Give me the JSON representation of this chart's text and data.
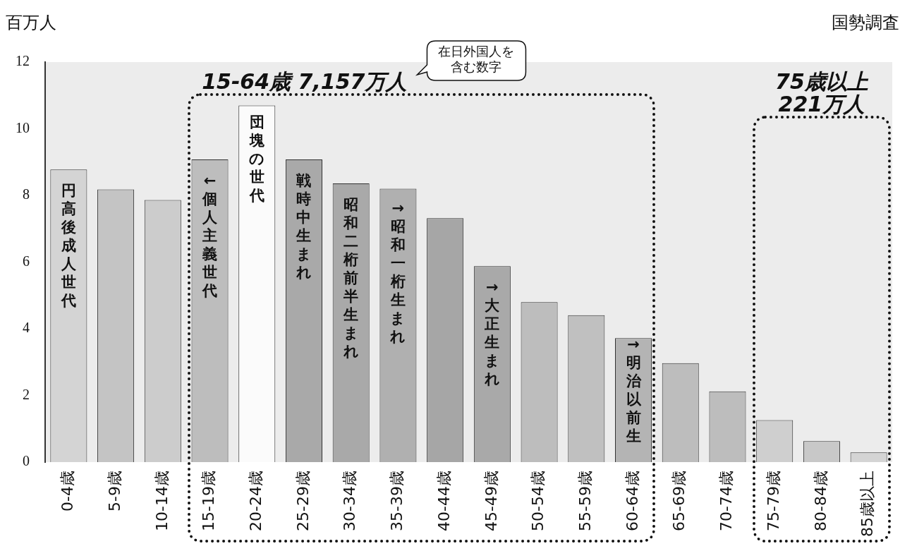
{
  "chart_data": {
    "type": "bar",
    "ylabel": "百万人",
    "categories": [
      "0-4歳",
      "5-9歳",
      "10-14歳",
      "15-19歳",
      "20-24歳",
      "25-29歳",
      "30-34歳",
      "35-39歳",
      "40-44歳",
      "45-49歳",
      "50-54歳",
      "55-59歳",
      "60-64歳",
      "65-69歳",
      "70-74歳",
      "75-79歳",
      "80-84歳",
      "85歳以上"
    ],
    "values": [
      8.78,
      8.18,
      7.86,
      9.08,
      10.7,
      9.08,
      8.36,
      8.2,
      7.32,
      5.88,
      4.8,
      4.41,
      3.72,
      2.97,
      2.12,
      1.26,
      0.63,
      0.29
    ],
    "colors": [
      "#d4d4d4",
      "#c4c4c4",
      "#cccccc",
      "#bdbdbd",
      "#fbfbfb",
      "#a9a9a9",
      "#a9a9a9",
      "#b0b0b0",
      "#a6a6a6",
      "#a9a9a9",
      "#bdbdbd",
      "#c0c0c0",
      "#b4b4b4",
      "#bdbdbd",
      "#bdbdbd",
      "#cfcfcf",
      "#c8c8c8",
      "#d4d4d4"
    ],
    "ylim": [
      0,
      12
    ],
    "yticks": [
      0,
      2,
      4,
      6,
      8,
      10,
      12
    ],
    "grid": false,
    "legend": false,
    "annotations": [
      "国勢調査",
      "在日外国人を含む数字",
      "15-64歳 7,157万人",
      "75歳以上 221万人",
      "円高後成人世代",
      "←個人主義世代",
      "団塊の世代",
      "戦時中生まれ",
      "昭和二桁前半生まれ",
      "→昭和一桁生まれ",
      "→大正生まれ",
      "→明治以前生"
    ]
  }
}
